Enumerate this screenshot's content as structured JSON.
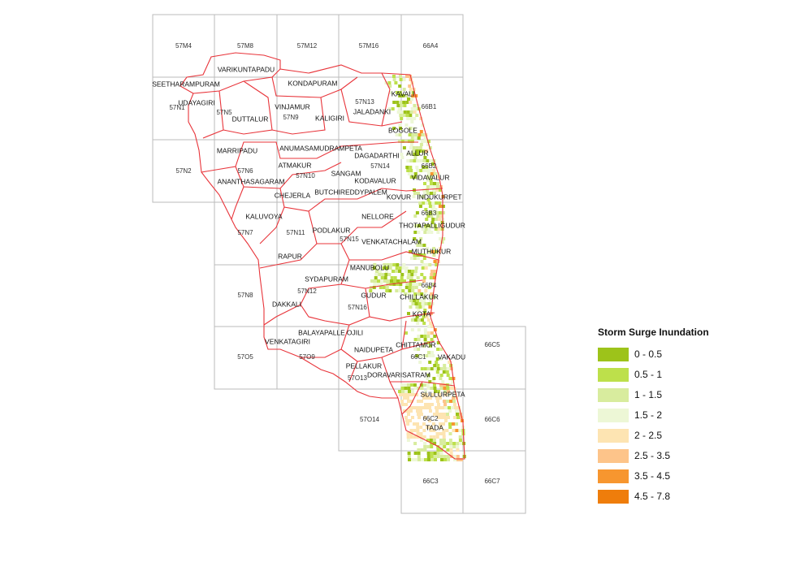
{
  "sheets": [
    "57M4",
    "57M8",
    "57M12",
    "57M16",
    "66A4",
    "57N1",
    "57N5",
    "57N9",
    "57N13",
    "66B1",
    "57N2",
    "57N6",
    "57N10",
    "57N14",
    "66B2",
    "57N7",
    "57N11",
    "57N15",
    "66B3",
    "57N8",
    "57N12",
    "57N16",
    "66B4",
    "57O5",
    "57O9",
    "57O13",
    "66C1",
    "66C5",
    "57O14",
    "66C2",
    "66C6",
    "66C3",
    "66C7"
  ],
  "mandals": [
    "VARIKUNTAPADU",
    "SEETHARAMPURAM",
    "KONDAPURAM",
    "UDAYAGIRI",
    "VINJAMUR",
    "KAVALI",
    "JALADANKI",
    "DUTTALUR",
    "KALIGIRI",
    "BOGOLE",
    "MARRIPADU",
    "ANUMASAMUDRAMPETA",
    "DAGADARTHI",
    "ALLUR",
    "ATMAKUR",
    "VIDAVALUR",
    "SANGAM",
    "ANANTHASAGARAM",
    "KODAVALUR",
    "CHEJERLA",
    "BUTCHIREDDYPALEM",
    "KOVUR",
    "INDUKURPET",
    "KALUVOYA",
    "NELLORE",
    "THOTAPALLIGUDUR",
    "PODLAKUR",
    "VENKATACHALAM",
    "MUTHUKUR",
    "RAPUR",
    "MANUBOLU",
    "SYDAPURAM",
    "CHILLAKUR",
    "GUDUR",
    "DAKKALI",
    "KOTA",
    "BALAYAPALLE",
    "OJILI",
    "VENKATAGIRI",
    "CHITTAMUR",
    "NAIDUPETA",
    "VAKADU",
    "PELLAKUR",
    "DORAVARISATRAM",
    "SULLURPETA",
    "TADA"
  ],
  "legend": {
    "title": "Storm Surge Inundation",
    "items": [
      {
        "label": "0 - 0.5",
        "color": "#9dc31a"
      },
      {
        "label": "0.5 - 1",
        "color": "#bde04b"
      },
      {
        "label": "1 - 1.5",
        "color": "#d8ec9e"
      },
      {
        "label": "1.5 - 2",
        "color": "#edf7d6"
      },
      {
        "label": "2 - 2.5",
        "color": "#fde4b2"
      },
      {
        "label": "2.5 - 3.5",
        "color": "#fdc48a"
      },
      {
        "label": "3.5 - 4.5",
        "color": "#f7962f"
      },
      {
        "label": "4.5 - 7.8",
        "color": "#ef7d0b"
      }
    ]
  }
}
